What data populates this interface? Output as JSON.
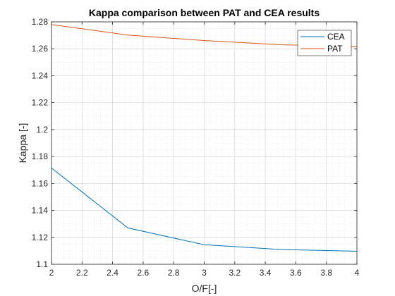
{
  "chart_data": {
    "type": "line",
    "title": "Kappa comparison between PAT and CEA results",
    "xlabel": "O/F[-]",
    "ylabel": "Kappa [-]",
    "xlim": [
      2,
      4
    ],
    "ylim": [
      1.1,
      1.28
    ],
    "xticks": [
      "2",
      "2.2",
      "2.4",
      "2.6",
      "2.8",
      "3",
      "3.2",
      "3.4",
      "3.6",
      "3.8",
      "4"
    ],
    "yticks": [
      "1.1",
      "1.12",
      "1.14",
      "1.16",
      "1.18",
      "1.2",
      "1.22",
      "1.24",
      "1.26",
      "1.28"
    ],
    "grid": true,
    "minor_grid": true,
    "legend_position": "top-right",
    "series": [
      {
        "name": "CEA",
        "color": "#0072BD",
        "x": [
          2,
          2.5,
          3,
          3.5,
          4
        ],
        "y": [
          1.1715,
          1.127,
          1.1145,
          1.111,
          1.1097
        ]
      },
      {
        "name": "PAT",
        "color": "#D95319",
        "x": [
          2,
          2.5,
          3,
          3.5,
          4
        ],
        "y": [
          1.278,
          1.2702,
          1.2661,
          1.263,
          1.2617
        ]
      }
    ]
  }
}
